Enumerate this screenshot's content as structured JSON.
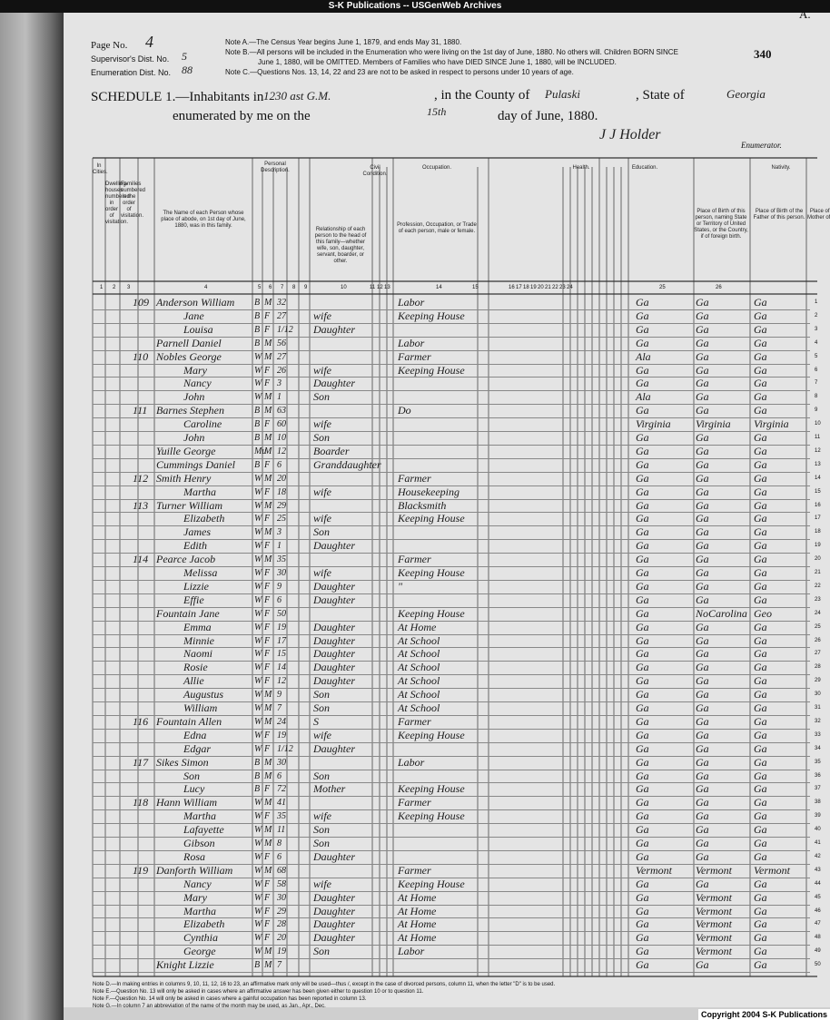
{
  "header": {
    "banner": "S-K Publications -- USGenWeb Archives",
    "page_label": "Page No.",
    "page_no": "4",
    "supervisor_label": "Supervisor's Dist. No.",
    "supervisor_no": "5",
    "enumeration_label": "Enumeration Dist. No.",
    "enumeration_no": "88",
    "sheet_no": "340",
    "corner": "A.",
    "notes": [
      "Note A.—The Census Year begins June 1, 1879, and ends May 31, 1880.",
      "Note B.—All persons will be included in the Enumeration who were living on the 1st day of June, 1880. No others will. Children BORN SINCE",
      "June 1, 1880, will be OMITTED. Members of Families who have DIED SINCE June 1, 1880, will be INCLUDED.",
      "Note C.—Questions Nos. 13, 14, 22 and 23 are not to be asked in respect to persons under 10 years of age."
    ]
  },
  "schedule": {
    "label": "SCHEDULE 1.—Inhabitants in",
    "district": "1230 ast G.M.",
    "county_label": ", in the County of",
    "county": "Pulaski",
    "state_label": ", State of",
    "state": "Georgia",
    "enumerated_label": "enumerated by me on the",
    "day": "15th",
    "month_label": "day of June, 1880.",
    "enumerator": "J J Holder",
    "enumerator_label": "Enumerator."
  },
  "columns": [
    "In Cities.",
    "Dwelling-houses numbered in order of visitation.",
    "Families numbered in the order of visitation.",
    "The Name of each Person whose place of abode, on 1st day of June, 1880, was in this family.",
    "Personal Description.",
    "Relationship of each person to the head of this family—whether wife, son, daughter, servant, boarder, or other.",
    "Civil Condition.",
    "Occupation.",
    "Profession, Occupation, or Trade of each person, male or female.",
    "Health.",
    "Education.",
    "Nativity.",
    "Place of Birth of this person, naming State or Territory of United States, or the Country, if of foreign birth.",
    "Place of Birth of the Father of this person.",
    "Place of Birth of the Mother of this person."
  ],
  "column_numbers": [
    "1",
    "2",
    "3",
    "4",
    "5",
    "6",
    "7",
    "8",
    "9",
    "10",
    "11",
    "12",
    "13",
    "14",
    "15",
    "16",
    "17",
    "18",
    "19",
    "20",
    "21",
    "22",
    "23",
    "24",
    "25",
    "26"
  ],
  "rows": [
    {
      "line": 1,
      "dwelling": "109",
      "name": "Anderson William",
      "color": "B",
      "sex": "M",
      "age": "32",
      "occupation": "Labor",
      "birth": "Ga",
      "father": "Ga",
      "mother": "Ga"
    },
    {
      "line": 2,
      "name": "Jane",
      "color": "B",
      "sex": "F",
      "age": "27",
      "relationship": "wife",
      "occupation": "Keeping House",
      "birth": "Ga",
      "father": "Ga",
      "mother": "Ga"
    },
    {
      "line": 3,
      "name": "Louisa",
      "color": "B",
      "sex": "F",
      "age": "1/12",
      "relationship": "Daughter",
      "birth": "Ga",
      "father": "Ga",
      "mother": "Ga"
    },
    {
      "line": 4,
      "name": "Parnell Daniel",
      "color": "B",
      "sex": "M",
      "age": "56",
      "occupation": "Labor",
      "birth": "Ga",
      "father": "Ga",
      "mother": "Ga"
    },
    {
      "line": 5,
      "dwelling": "110",
      "name": "Nobles George",
      "color": "W",
      "sex": "M",
      "age": "27",
      "occupation": "Farmer",
      "birth": "Ala",
      "father": "Ga",
      "mother": "Ga"
    },
    {
      "line": 6,
      "name": "Mary",
      "color": "W",
      "sex": "F",
      "age": "26",
      "relationship": "wife",
      "occupation": "Keeping House",
      "birth": "Ga",
      "father": "Ga",
      "mother": "Ga"
    },
    {
      "line": 7,
      "name": "Nancy",
      "color": "W",
      "sex": "F",
      "age": "3",
      "relationship": "Daughter",
      "birth": "Ga",
      "father": "Ga",
      "mother": "Ga"
    },
    {
      "line": 8,
      "name": "John",
      "color": "W",
      "sex": "M",
      "age": "1",
      "relationship": "Son",
      "birth": "Ala",
      "father": "Ga",
      "mother": "Ga"
    },
    {
      "line": 9,
      "dwelling": "111",
      "name": "Barnes Stephen",
      "color": "B",
      "sex": "M",
      "age": "63",
      "occupation": "Do",
      "birth": "Ga",
      "father": "Ga",
      "mother": "Ga"
    },
    {
      "line": 10,
      "name": "Caroline",
      "color": "B",
      "sex": "F",
      "age": "60",
      "relationship": "wife",
      "birth": "Virginia",
      "father": "Virginia",
      "mother": "Virginia"
    },
    {
      "line": 11,
      "name": "John",
      "color": "B",
      "sex": "M",
      "age": "10",
      "relationship": "Son",
      "birth": "Ga",
      "father": "Ga",
      "mother": "Ga"
    },
    {
      "line": 12,
      "name": "Yuille George",
      "color": "Mu",
      "sex": "M",
      "age": "12",
      "relationship": "Boarder",
      "birth": "Ga",
      "father": "Ga",
      "mother": "Ga"
    },
    {
      "line": 13,
      "name": "Cummings Daniel",
      "color": "B",
      "sex": "F",
      "age": "6",
      "relationship": "Granddaughter",
      "birth": "Ga",
      "father": "Ga",
      "mother": "Ga"
    },
    {
      "line": 14,
      "dwelling": "112",
      "name": "Smith Henry",
      "color": "W",
      "sex": "M",
      "age": "20",
      "occupation": "Farmer",
      "birth": "Ga",
      "father": "Ga",
      "mother": "Ga"
    },
    {
      "line": 15,
      "name": "Martha",
      "color": "W",
      "sex": "F",
      "age": "18",
      "relationship": "wife",
      "occupation": "Housekeeping",
      "birth": "Ga",
      "father": "Ga",
      "mother": "Ga"
    },
    {
      "line": 16,
      "dwelling": "113",
      "name": "Turner William",
      "color": "W",
      "sex": "M",
      "age": "29",
      "occupation": "Blacksmith",
      "birth": "Ga",
      "father": "Ga",
      "mother": "Ga"
    },
    {
      "line": 17,
      "name": "Elizabeth",
      "color": "W",
      "sex": "F",
      "age": "25",
      "relationship": "wife",
      "occupation": "Keeping House",
      "birth": "Ga",
      "father": "Ga",
      "mother": "Ga"
    },
    {
      "line": 18,
      "name": "James",
      "color": "W",
      "sex": "M",
      "age": "3",
      "relationship": "Son",
      "birth": "Ga",
      "father": "Ga",
      "mother": "Ga"
    },
    {
      "line": 19,
      "name": "Edith",
      "color": "W",
      "sex": "F",
      "age": "1",
      "relationship": "Daughter",
      "birth": "Ga",
      "father": "Ga",
      "mother": "Ga"
    },
    {
      "line": 20,
      "dwelling": "114",
      "name": "Pearce Jacob",
      "color": "W",
      "sex": "M",
      "age": "35",
      "occupation": "Farmer",
      "birth": "Ga",
      "father": "Ga",
      "mother": "Ga"
    },
    {
      "line": 21,
      "name": "Melissa",
      "color": "W",
      "sex": "F",
      "age": "30",
      "relationship": "wife",
      "occupation": "Keeping House",
      "birth": "Ga",
      "father": "Ga",
      "mother": "Ga"
    },
    {
      "line": 22,
      "name": "Lizzie",
      "color": "W",
      "sex": "F",
      "age": "9",
      "relationship": "Daughter",
      "occupation": "\"",
      "birth": "Ga",
      "father": "Ga",
      "mother": "Ga"
    },
    {
      "line": 23,
      "name": "Effie",
      "color": "W",
      "sex": "F",
      "age": "6",
      "relationship": "Daughter",
      "birth": "Ga",
      "father": "Ga",
      "mother": "Ga"
    },
    {
      "line": 24,
      "name": "Fountain Jane",
      "color": "W",
      "sex": "F",
      "age": "50",
      "occupation": "Keeping House",
      "birth": "Ga",
      "father": "NoCarolina",
      "mother": "Geo"
    },
    {
      "line": 25,
      "name": "Emma",
      "color": "W",
      "sex": "F",
      "age": "19",
      "relationship": "Daughter",
      "occupation": "At Home",
      "birth": "Ga",
      "father": "Ga",
      "mother": "Ga"
    },
    {
      "line": 26,
      "name": "Minnie",
      "color": "W",
      "sex": "F",
      "age": "17",
      "relationship": "Daughter",
      "occupation": "At School",
      "birth": "Ga",
      "father": "Ga",
      "mother": "Ga"
    },
    {
      "line": 27,
      "name": "Naomi",
      "color": "W",
      "sex": "F",
      "age": "15",
      "relationship": "Daughter",
      "occupation": "At School",
      "birth": "Ga",
      "father": "Ga",
      "mother": "Ga"
    },
    {
      "line": 28,
      "name": "Rosie",
      "color": "W",
      "sex": "F",
      "age": "14",
      "relationship": "Daughter",
      "occupation": "At School",
      "birth": "Ga",
      "father": "Ga",
      "mother": "Ga"
    },
    {
      "line": 29,
      "name": "Allie",
      "color": "W",
      "sex": "F",
      "age": "12",
      "relationship": "Daughter",
      "occupation": "At School",
      "birth": "Ga",
      "father": "Ga",
      "mother": "Ga"
    },
    {
      "line": 30,
      "name": "Augustus",
      "color": "W",
      "sex": "M",
      "age": "9",
      "relationship": "Son",
      "occupation": "At School",
      "birth": "Ga",
      "father": "Ga",
      "mother": "Ga"
    },
    {
      "line": 31,
      "name": "William",
      "color": "W",
      "sex": "M",
      "age": "7",
      "relationship": "Son",
      "occupation": "At School",
      "birth": "Ga",
      "father": "Ga",
      "mother": "Ga"
    },
    {
      "line": 32,
      "dwelling": "116",
      "name": "Fountain Allen",
      "color": "W",
      "sex": "M",
      "age": "24",
      "relationship": "S",
      "occupation": "Farmer",
      "birth": "Ga",
      "father": "Ga",
      "mother": "Ga"
    },
    {
      "line": 33,
      "name": "Edna",
      "color": "W",
      "sex": "F",
      "age": "19",
      "relationship": "wife",
      "occupation": "Keeping House",
      "birth": "Ga",
      "father": "Ga",
      "mother": "Ga"
    },
    {
      "line": 34,
      "name": "Edgar",
      "color": "W",
      "sex": "F",
      "age": "1/12",
      "relationship": "Daughter",
      "birth": "Ga",
      "father": "Ga",
      "mother": "Ga"
    },
    {
      "line": 35,
      "dwelling": "117",
      "name": "Sikes Simon",
      "color": "B",
      "sex": "M",
      "age": "30",
      "occupation": "Labor",
      "birth": "Ga",
      "father": "Ga",
      "mother": "Ga"
    },
    {
      "line": 36,
      "name": "Son",
      "color": "B",
      "sex": "M",
      "age": "6",
      "relationship": "Son",
      "birth": "Ga",
      "father": "Ga",
      "mother": "Ga"
    },
    {
      "line": 37,
      "name": "Lucy",
      "color": "B",
      "sex": "F",
      "age": "72",
      "relationship": "Mother",
      "occupation": "Keeping House",
      "birth": "Ga",
      "father": "Ga",
      "mother": "Ga"
    },
    {
      "line": 38,
      "dwelling": "118",
      "name": "Hann William",
      "color": "W",
      "sex": "M",
      "age": "41",
      "occupation": "Farmer",
      "birth": "Ga",
      "father": "Ga",
      "mother": "Ga"
    },
    {
      "line": 39,
      "name": "Martha",
      "color": "W",
      "sex": "F",
      "age": "35",
      "relationship": "wife",
      "occupation": "Keeping House",
      "birth": "Ga",
      "father": "Ga",
      "mother": "Ga"
    },
    {
      "line": 40,
      "name": "Lafayette",
      "color": "W",
      "sex": "M",
      "age": "11",
      "relationship": "Son",
      "birth": "Ga",
      "father": "Ga",
      "mother": "Ga"
    },
    {
      "line": 41,
      "name": "Gibson",
      "color": "W",
      "sex": "M",
      "age": "8",
      "relationship": "Son",
      "birth": "Ga",
      "father": "Ga",
      "mother": "Ga"
    },
    {
      "line": 42,
      "name": "Rosa",
      "color": "W",
      "sex": "F",
      "age": "6",
      "relationship": "Daughter",
      "birth": "Ga",
      "father": "Ga",
      "mother": "Ga"
    },
    {
      "line": 43,
      "dwelling": "119",
      "name": "Danforth William",
      "color": "W",
      "sex": "M",
      "age": "68",
      "occupation": "Farmer",
      "birth": "Vermont",
      "father": "Vermont",
      "mother": "Vermont"
    },
    {
      "line": 44,
      "name": "Nancy",
      "color": "W",
      "sex": "F",
      "age": "58",
      "relationship": "wife",
      "occupation": "Keeping House",
      "birth": "Ga",
      "father": "Ga",
      "mother": "Ga"
    },
    {
      "line": 45,
      "name": "Mary",
      "color": "W",
      "sex": "F",
      "age": "30",
      "relationship": "Daughter",
      "occupation": "At Home",
      "birth": "Ga",
      "father": "Vermont",
      "mother": "Ga"
    },
    {
      "line": 46,
      "name": "Martha",
      "color": "W",
      "sex": "F",
      "age": "29",
      "relationship": "Daughter",
      "occupation": "At Home",
      "birth": "Ga",
      "father": "Vermont",
      "mother": "Ga"
    },
    {
      "line": 47,
      "name": "Elizabeth",
      "color": "W",
      "sex": "F",
      "age": "28",
      "relationship": "Daughter",
      "occupation": "At Home",
      "birth": "Ga",
      "father": "Vermont",
      "mother": "Ga"
    },
    {
      "line": 48,
      "name": "Cynthia",
      "color": "W",
      "sex": "F",
      "age": "20",
      "relationship": "Daughter",
      "occupation": "At Home",
      "birth": "Ga",
      "father": "Vermont",
      "mother": "Ga"
    },
    {
      "line": 49,
      "name": "George",
      "color": "W",
      "sex": "M",
      "age": "19",
      "relationship": "Son",
      "occupation": "Labor",
      "birth": "Ga",
      "father": "Vermont",
      "mother": "Ga"
    },
    {
      "line": 50,
      "name": "Knight Lizzie",
      "color": "B",
      "sex": "M",
      "age": "7",
      "birth": "Ga",
      "father": "Ga",
      "mother": "Ga"
    }
  ],
  "footer": {
    "notes": [
      "Note D.—In making entries in columns 9, 10, 11, 12, 16 to 23, an affirmative mark only will be used—thus /, except in the case of divorced persons, column 11, when the letter \"D\" is to be used.",
      "Note E.—Question No. 13 will only be asked in cases where an affirmative answer has been given either to question 10 or to question 11.",
      "Note F.—Question No. 14 will only be asked in cases where a gainful occupation has been reported in column 13.",
      "Note G.—In column 7 an abbreviation of the name of the month may be used, as Jan., Apr., Dec."
    ],
    "copyright": "Copyright 2004 S-K Publications"
  }
}
